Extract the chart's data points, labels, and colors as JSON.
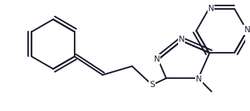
{
  "bg_color": "#ffffff",
  "line_color": "#1c1c2e",
  "label_color": "#1c1c2e",
  "font_size": 8.5,
  "line_width": 1.6,
  "figsize": [
    3.65,
    1.62
  ],
  "dpi": 100,
  "xlim": [
    0,
    3.65
  ],
  "ylim": [
    0,
    1.62
  ]
}
